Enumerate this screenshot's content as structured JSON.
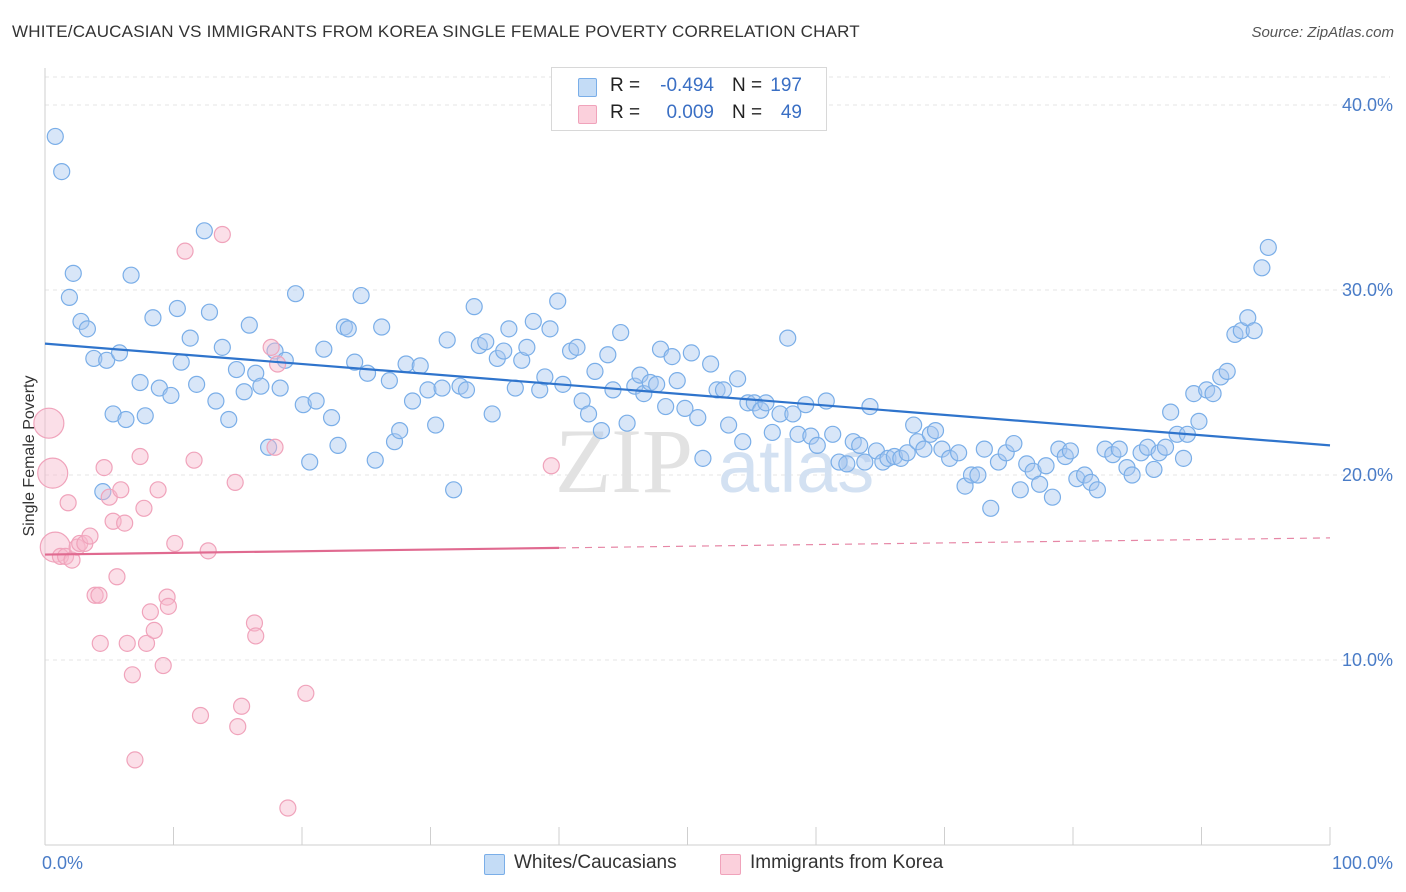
{
  "header": {
    "title": "WHITE/CAUCASIAN VS IMMIGRANTS FROM KOREA SINGLE FEMALE POVERTY CORRELATION CHART",
    "source": "Source: ZipAtlas.com"
  },
  "watermark": {
    "zip": "ZIP",
    "atlas": "atlas"
  },
  "legend": {
    "rows": [
      {
        "r_label": "R =",
        "r_value": "-0.494",
        "n_label": "N =",
        "n_value": "197",
        "color": "#a8c8f0"
      },
      {
        "r_label": "R =",
        "r_value": "0.009",
        "n_label": "N =",
        "n_value": "49",
        "color": "#f7b8cb"
      }
    ]
  },
  "bottom_legend": [
    {
      "label": "Whites/Caucasians",
      "color": "#a8c8f0"
    },
    {
      "label": "Immigrants from Korea",
      "color": "#f7b8cb"
    }
  ],
  "chart_data": {
    "type": "scatter",
    "title": "WHITE/CAUCASIAN VS IMMIGRANTS FROM KOREA SINGLE FEMALE POVERTY CORRELATION CHART",
    "xlabel": "",
    "ylabel": "Single Female Poverty",
    "xlim": [
      0,
      100
    ],
    "ylim": [
      0,
      42
    ],
    "x_tick_labels": [
      "0.0%",
      "100.0%"
    ],
    "y_ticks": [
      10,
      20,
      30,
      40
    ],
    "y_tick_labels": [
      "10.0%",
      "20.0%",
      "30.0%",
      "40.0%"
    ],
    "grid": true,
    "legend_position": "top-center",
    "series": [
      {
        "name": "Whites/Caucasians",
        "color": "#7aaee8",
        "trend": {
          "x": [
            0,
            100
          ],
          "y": [
            27.1,
            21.6
          ],
          "dashed_from": 100
        },
        "points": [
          [
            0.8,
            38.3
          ],
          [
            1.3,
            36.4
          ],
          [
            1.9,
            29.6
          ],
          [
            2.2,
            30.9
          ],
          [
            2.8,
            28.3
          ],
          [
            3.3,
            27.9
          ],
          [
            3.8,
            26.3
          ],
          [
            4.5,
            19.1
          ],
          [
            4.8,
            26.2
          ],
          [
            5.3,
            23.3
          ],
          [
            5.8,
            26.6
          ],
          [
            6.3,
            23.0
          ],
          [
            6.7,
            30.8
          ],
          [
            7.4,
            25.0
          ],
          [
            7.8,
            23.2
          ],
          [
            8.4,
            28.5
          ],
          [
            8.9,
            24.7
          ],
          [
            9.8,
            24.3
          ],
          [
            10.3,
            29.0
          ],
          [
            10.6,
            26.1
          ],
          [
            11.3,
            27.4
          ],
          [
            11.8,
            24.9
          ],
          [
            12.4,
            33.2
          ],
          [
            12.8,
            28.8
          ],
          [
            13.3,
            24.0
          ],
          [
            13.8,
            26.9
          ],
          [
            14.3,
            23.0
          ],
          [
            14.9,
            25.7
          ],
          [
            15.5,
            24.5
          ],
          [
            15.9,
            28.1
          ],
          [
            16.4,
            25.5
          ],
          [
            16.8,
            24.8
          ],
          [
            17.4,
            21.5
          ],
          [
            17.9,
            26.7
          ],
          [
            18.3,
            24.7
          ],
          [
            18.7,
            26.2
          ],
          [
            19.5,
            29.8
          ],
          [
            20.1,
            23.8
          ],
          [
            20.6,
            20.7
          ],
          [
            21.1,
            24.0
          ],
          [
            21.7,
            26.8
          ],
          [
            22.3,
            23.1
          ],
          [
            22.8,
            21.6
          ],
          [
            23.3,
            28.0
          ],
          [
            23.6,
            27.9
          ],
          [
            24.1,
            26.1
          ],
          [
            24.6,
            29.7
          ],
          [
            25.1,
            25.5
          ],
          [
            25.7,
            20.8
          ],
          [
            26.2,
            28.0
          ],
          [
            26.8,
            25.1
          ],
          [
            27.2,
            21.8
          ],
          [
            27.6,
            22.4
          ],
          [
            28.1,
            26.0
          ],
          [
            28.6,
            24.0
          ],
          [
            29.2,
            25.9
          ],
          [
            29.8,
            24.6
          ],
          [
            30.4,
            22.7
          ],
          [
            30.9,
            24.7
          ],
          [
            31.3,
            27.3
          ],
          [
            31.8,
            19.2
          ],
          [
            32.3,
            24.8
          ],
          [
            32.8,
            24.6
          ],
          [
            33.4,
            29.1
          ],
          [
            33.8,
            27.0
          ],
          [
            34.3,
            27.2
          ],
          [
            34.8,
            23.3
          ],
          [
            35.2,
            26.3
          ],
          [
            35.7,
            26.7
          ],
          [
            36.1,
            27.9
          ],
          [
            36.6,
            24.7
          ],
          [
            37.1,
            26.2
          ],
          [
            37.5,
            26.9
          ],
          [
            38.0,
            28.3
          ],
          [
            38.5,
            24.6
          ],
          [
            38.9,
            25.3
          ],
          [
            39.3,
            27.9
          ],
          [
            39.9,
            29.4
          ],
          [
            40.3,
            24.9
          ],
          [
            40.9,
            26.7
          ],
          [
            41.4,
            26.9
          ],
          [
            41.8,
            24.0
          ],
          [
            42.3,
            23.3
          ],
          [
            42.8,
            25.6
          ],
          [
            43.3,
            22.4
          ],
          [
            43.8,
            26.5
          ],
          [
            44.2,
            24.6
          ],
          [
            44.8,
            27.7
          ],
          [
            45.3,
            22.8
          ],
          [
            45.9,
            24.8
          ],
          [
            46.3,
            25.4
          ],
          [
            46.6,
            24.4
          ],
          [
            47.1,
            25.0
          ],
          [
            47.6,
            24.9
          ],
          [
            47.9,
            26.8
          ],
          [
            48.3,
            23.7
          ],
          [
            48.8,
            26.4
          ],
          [
            49.2,
            25.1
          ],
          [
            49.8,
            23.6
          ],
          [
            50.3,
            26.6
          ],
          [
            50.8,
            23.1
          ],
          [
            51.2,
            20.9
          ],
          [
            51.8,
            26.0
          ],
          [
            52.3,
            24.6
          ],
          [
            52.8,
            24.6
          ],
          [
            53.2,
            22.7
          ],
          [
            53.9,
            25.2
          ],
          [
            54.3,
            21.8
          ],
          [
            54.7,
            23.9
          ],
          [
            55.2,
            23.9
          ],
          [
            55.7,
            23.5
          ],
          [
            56.1,
            23.9
          ],
          [
            56.6,
            22.3
          ],
          [
            57.2,
            23.3
          ],
          [
            57.8,
            27.4
          ],
          [
            58.2,
            23.3
          ],
          [
            58.6,
            22.2
          ],
          [
            59.2,
            23.8
          ],
          [
            59.6,
            22.1
          ],
          [
            60.1,
            21.6
          ],
          [
            60.8,
            24.0
          ],
          [
            61.3,
            22.2
          ],
          [
            61.8,
            20.7
          ],
          [
            62.4,
            20.6
          ],
          [
            62.9,
            21.8
          ],
          [
            63.4,
            21.6
          ],
          [
            63.8,
            20.7
          ],
          [
            64.2,
            23.7
          ],
          [
            64.7,
            21.3
          ],
          [
            65.2,
            20.7
          ],
          [
            65.6,
            20.9
          ],
          [
            66.1,
            21.0
          ],
          [
            66.6,
            20.9
          ],
          [
            67.1,
            21.2
          ],
          [
            67.6,
            22.7
          ],
          [
            67.9,
            21.8
          ],
          [
            68.4,
            21.4
          ],
          [
            68.9,
            22.2
          ],
          [
            69.3,
            22.4
          ],
          [
            69.8,
            21.4
          ],
          [
            70.4,
            20.9
          ],
          [
            71.1,
            21.2
          ],
          [
            71.6,
            19.4
          ],
          [
            72.1,
            20.0
          ],
          [
            72.6,
            20.0
          ],
          [
            73.1,
            21.4
          ],
          [
            73.6,
            18.2
          ],
          [
            74.2,
            20.7
          ],
          [
            74.8,
            21.2
          ],
          [
            75.4,
            21.7
          ],
          [
            75.9,
            19.2
          ],
          [
            76.4,
            20.6
          ],
          [
            76.9,
            20.2
          ],
          [
            77.4,
            19.5
          ],
          [
            77.9,
            20.5
          ],
          [
            78.4,
            18.8
          ],
          [
            78.9,
            21.4
          ],
          [
            79.4,
            21.0
          ],
          [
            79.8,
            21.3
          ],
          [
            80.3,
            19.8
          ],
          [
            80.9,
            20.0
          ],
          [
            81.4,
            19.6
          ],
          [
            81.9,
            19.2
          ],
          [
            82.5,
            21.4
          ],
          [
            83.1,
            21.1
          ],
          [
            83.6,
            21.4
          ],
          [
            84.2,
            20.4
          ],
          [
            84.6,
            20.0
          ],
          [
            85.3,
            21.2
          ],
          [
            85.8,
            21.5
          ],
          [
            86.3,
            20.3
          ],
          [
            86.7,
            21.2
          ],
          [
            87.2,
            21.5
          ],
          [
            87.6,
            23.4
          ],
          [
            88.1,
            22.2
          ],
          [
            88.6,
            20.9
          ],
          [
            88.9,
            22.2
          ],
          [
            89.4,
            24.4
          ],
          [
            89.8,
            22.9
          ],
          [
            90.4,
            24.6
          ],
          [
            90.9,
            24.4
          ],
          [
            91.5,
            25.3
          ],
          [
            92.0,
            25.6
          ],
          [
            92.6,
            27.6
          ],
          [
            93.1,
            27.8
          ],
          [
            93.6,
            28.5
          ],
          [
            94.1,
            27.8
          ],
          [
            94.7,
            31.2
          ],
          [
            95.2,
            32.3
          ]
        ]
      },
      {
        "name": "Immigrants from Korea",
        "color": "#f0a3bb",
        "trend": {
          "x": [
            0,
            100
          ],
          "y": [
            15.7,
            16.6
          ],
          "dashed_from": 40
        },
        "points": [
          [
            0.3,
            22.8
          ],
          [
            0.6,
            20.1
          ],
          [
            0.8,
            16.1
          ],
          [
            1.2,
            15.6
          ],
          [
            1.6,
            15.6
          ],
          [
            1.8,
            18.5
          ],
          [
            2.1,
            15.4
          ],
          [
            2.5,
            16.1
          ],
          [
            2.7,
            16.3
          ],
          [
            3.1,
            16.3
          ],
          [
            3.5,
            16.7
          ],
          [
            3.9,
            13.5
          ],
          [
            4.2,
            13.5
          ],
          [
            4.3,
            10.9
          ],
          [
            4.6,
            20.4
          ],
          [
            5.0,
            18.8
          ],
          [
            5.3,
            17.5
          ],
          [
            5.6,
            14.5
          ],
          [
            5.9,
            19.2
          ],
          [
            6.2,
            17.4
          ],
          [
            6.4,
            10.9
          ],
          [
            6.8,
            9.2
          ],
          [
            7.0,
            4.6
          ],
          [
            7.4,
            21.0
          ],
          [
            7.7,
            18.2
          ],
          [
            7.9,
            10.9
          ],
          [
            8.2,
            12.6
          ],
          [
            8.5,
            11.6
          ],
          [
            8.8,
            19.2
          ],
          [
            9.2,
            9.7
          ],
          [
            9.5,
            13.4
          ],
          [
            9.6,
            12.9
          ],
          [
            10.1,
            16.3
          ],
          [
            10.9,
            32.1
          ],
          [
            11.6,
            20.8
          ],
          [
            12.1,
            7.0
          ],
          [
            12.7,
            15.9
          ],
          [
            13.8,
            33.0
          ],
          [
            14.8,
            19.6
          ],
          [
            15.0,
            6.4
          ],
          [
            15.3,
            7.5
          ],
          [
            16.3,
            12.0
          ],
          [
            16.4,
            11.3
          ],
          [
            17.6,
            26.9
          ],
          [
            17.9,
            21.5
          ],
          [
            18.1,
            26.0
          ],
          [
            18.9,
            2.0
          ],
          [
            20.3,
            8.2
          ],
          [
            39.4,
            20.5
          ]
        ]
      }
    ]
  }
}
